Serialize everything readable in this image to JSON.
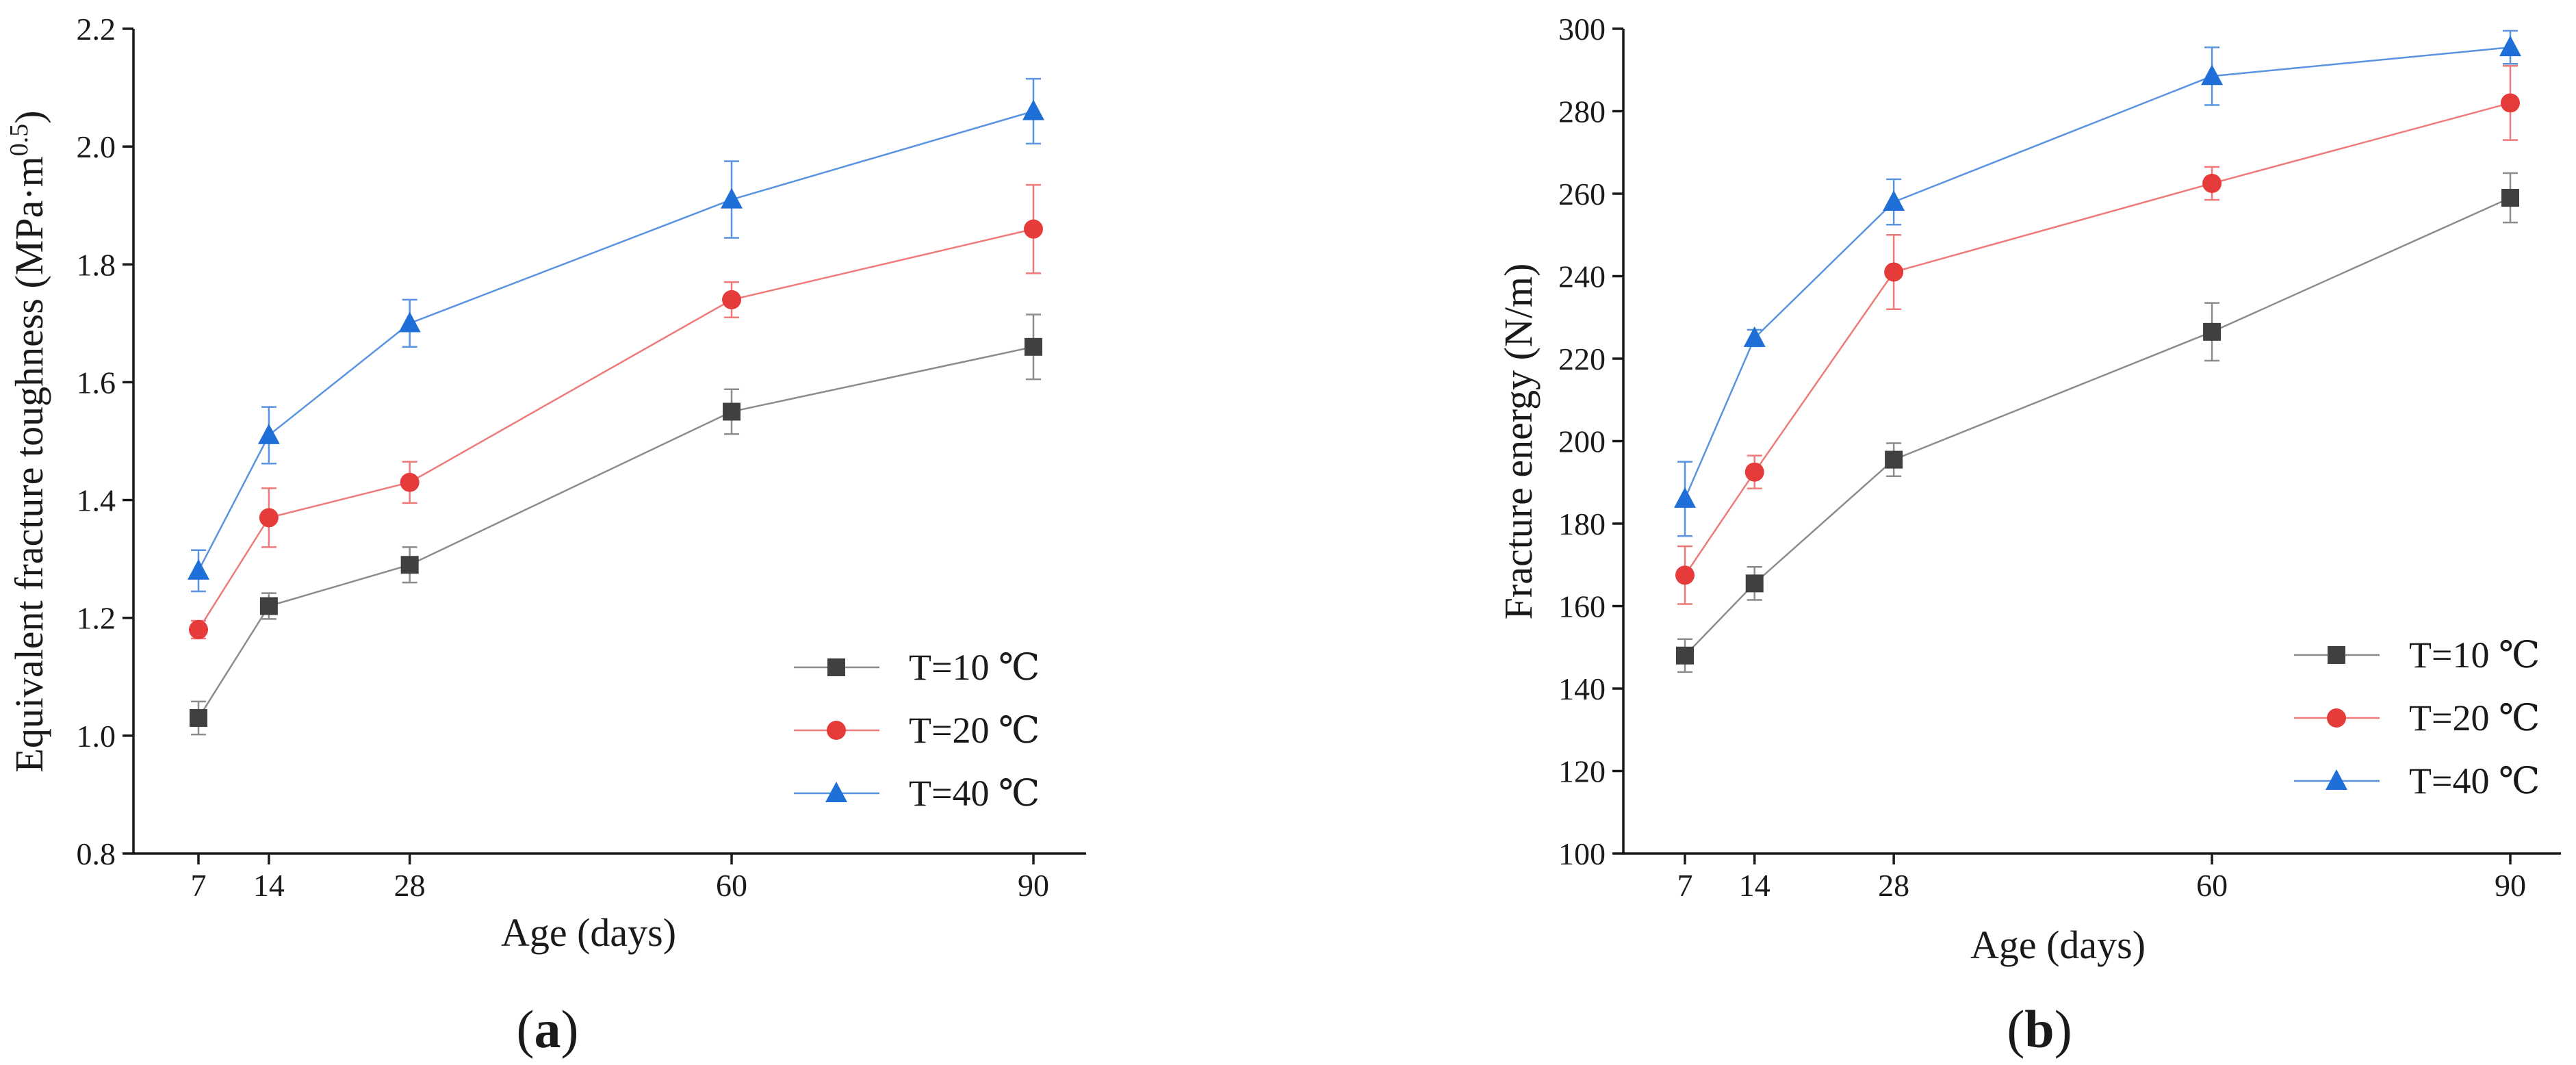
{
  "chart_data": [
    {
      "type": "line",
      "panel_label": {
        "open": "(",
        "letter": "a",
        "close": ")"
      },
      "xlabel": "Age (days)",
      "ylabel": "Equivalent fracture toughness (MPa·m",
      "ylabel_sup": "0.5",
      "ylabel_close": ")",
      "x": [
        7,
        14,
        28,
        60,
        90
      ],
      "x_tick_labels": [
        "7",
        "14",
        "28",
        "60",
        "90"
      ],
      "xlim": [
        0,
        95
      ],
      "ylim": [
        0.8,
        2.2
      ],
      "y_ticks": [
        0.8,
        1.0,
        1.2,
        1.4,
        1.6,
        1.8,
        2.0,
        2.2
      ],
      "y_tick_labels": [
        "0.8",
        "1.0",
        "1.2",
        "1.4",
        "1.6",
        "1.8",
        "2.0",
        "2.2"
      ],
      "legend_position": "lower-right",
      "series": [
        {
          "name": "T=10 ℃",
          "marker": "square",
          "color": "#404040",
          "line_color": "#8c8c8c",
          "values": [
            1.03,
            1.22,
            1.29,
            1.55,
            1.66
          ],
          "errors": [
            0.028,
            0.022,
            0.03,
            0.038,
            0.055
          ]
        },
        {
          "name": "T=20 ℃",
          "marker": "circle",
          "color": "#e63b3b",
          "line_color": "#ef7a7a",
          "values": [
            1.18,
            1.37,
            1.43,
            1.74,
            1.86
          ],
          "errors": [
            0.015,
            0.05,
            0.035,
            0.03,
            0.075
          ]
        },
        {
          "name": "T=40 ℃",
          "marker": "triangle",
          "color": "#1f6fd8",
          "line_color": "#5a93e0",
          "values": [
            1.28,
            1.51,
            1.7,
            1.91,
            2.06
          ],
          "errors": [
            0.035,
            0.048,
            0.04,
            0.065,
            0.055
          ]
        }
      ]
    },
    {
      "type": "line",
      "panel_label": {
        "open": "(",
        "letter": "b",
        "close": ")"
      },
      "xlabel": "Age (days)",
      "ylabel": "Fracture energy (N/m)",
      "x": [
        7,
        14,
        28,
        60,
        90
      ],
      "x_tick_labels": [
        "7",
        "14",
        "28",
        "60",
        "90"
      ],
      "xlim": [
        0,
        95
      ],
      "ylim": [
        100,
        300
      ],
      "y_ticks": [
        100,
        120,
        140,
        160,
        180,
        200,
        220,
        240,
        260,
        280,
        300
      ],
      "y_tick_labels": [
        "100",
        "120",
        "140",
        "160",
        "180",
        "200",
        "220",
        "240",
        "260",
        "280",
        "300"
      ],
      "legend_position": "lower-right",
      "series": [
        {
          "name": "T=10 ℃",
          "marker": "square",
          "color": "#404040",
          "line_color": "#8c8c8c",
          "values": [
            148,
            165.5,
            195.5,
            226.5,
            259
          ],
          "errors": [
            4,
            4,
            4,
            7,
            6
          ]
        },
        {
          "name": "T=20 ℃",
          "marker": "circle",
          "color": "#e63b3b",
          "line_color": "#ef7a7a",
          "values": [
            167.5,
            192.5,
            241,
            262.5,
            282
          ],
          "errors": [
            7,
            4,
            9,
            4,
            9
          ]
        },
        {
          "name": "T=40 ℃",
          "marker": "triangle",
          "color": "#1f6fd8",
          "line_color": "#5a93e0",
          "values": [
            186,
            225,
            258,
            288.5,
            295.5
          ],
          "errors": [
            9,
            2,
            5.5,
            7,
            4
          ]
        }
      ]
    }
  ]
}
